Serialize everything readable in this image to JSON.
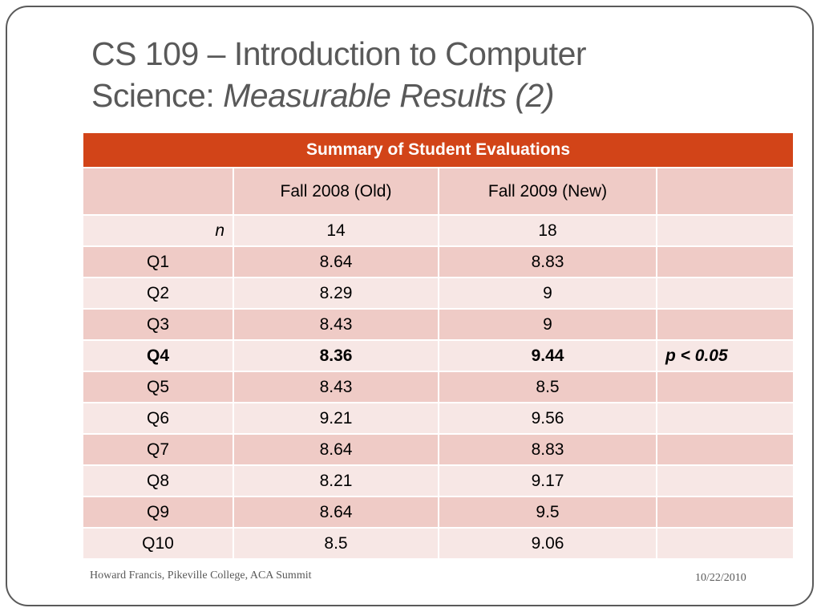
{
  "title": {
    "line1": "CS 109 – Introduction to Computer",
    "line2_plain": "Science: ",
    "line2_italic": "Measurable Results (2)"
  },
  "table": {
    "caption": "Summary of Student Evaluations",
    "headers": [
      "",
      "Fall 2008 (Old)",
      "Fall 2009 (New)",
      ""
    ],
    "n_row": {
      "label": "n",
      "fall2008": "14",
      "fall2009": "18",
      "note": ""
    },
    "rows": [
      {
        "label": "Q1",
        "fall2008": "8.64",
        "fall2009": "8.83",
        "note": ""
      },
      {
        "label": "Q2",
        "fall2008": "8.29",
        "fall2009": "9",
        "note": ""
      },
      {
        "label": "Q3",
        "fall2008": "8.43",
        "fall2009": "9",
        "note": ""
      },
      {
        "label": "Q4",
        "fall2008": "8.36",
        "fall2009": "9.44",
        "note": "p < 0.05"
      },
      {
        "label": "Q5",
        "fall2008": "8.43",
        "fall2009": "8.5",
        "note": ""
      },
      {
        "label": "Q6",
        "fall2008": "9.21",
        "fall2009": "9.56",
        "note": ""
      },
      {
        "label": "Q7",
        "fall2008": "8.64",
        "fall2009": "8.83",
        "note": ""
      },
      {
        "label": "Q8",
        "fall2008": "8.21",
        "fall2009": "9.17",
        "note": ""
      },
      {
        "label": "Q9",
        "fall2008": "8.64",
        "fall2009": "9.5",
        "note": ""
      },
      {
        "label": "Q10",
        "fall2008": "8.5",
        "fall2009": "9.06",
        "note": ""
      }
    ]
  },
  "footer": {
    "left": "Howard Francis, Pikeville College, ACA Summit",
    "right": "10/22/2010"
  },
  "colors": {
    "header_band": "#d24418",
    "row_dark": "#efcbc6",
    "row_light": "#f7e7e5",
    "title_text": "#595959"
  }
}
